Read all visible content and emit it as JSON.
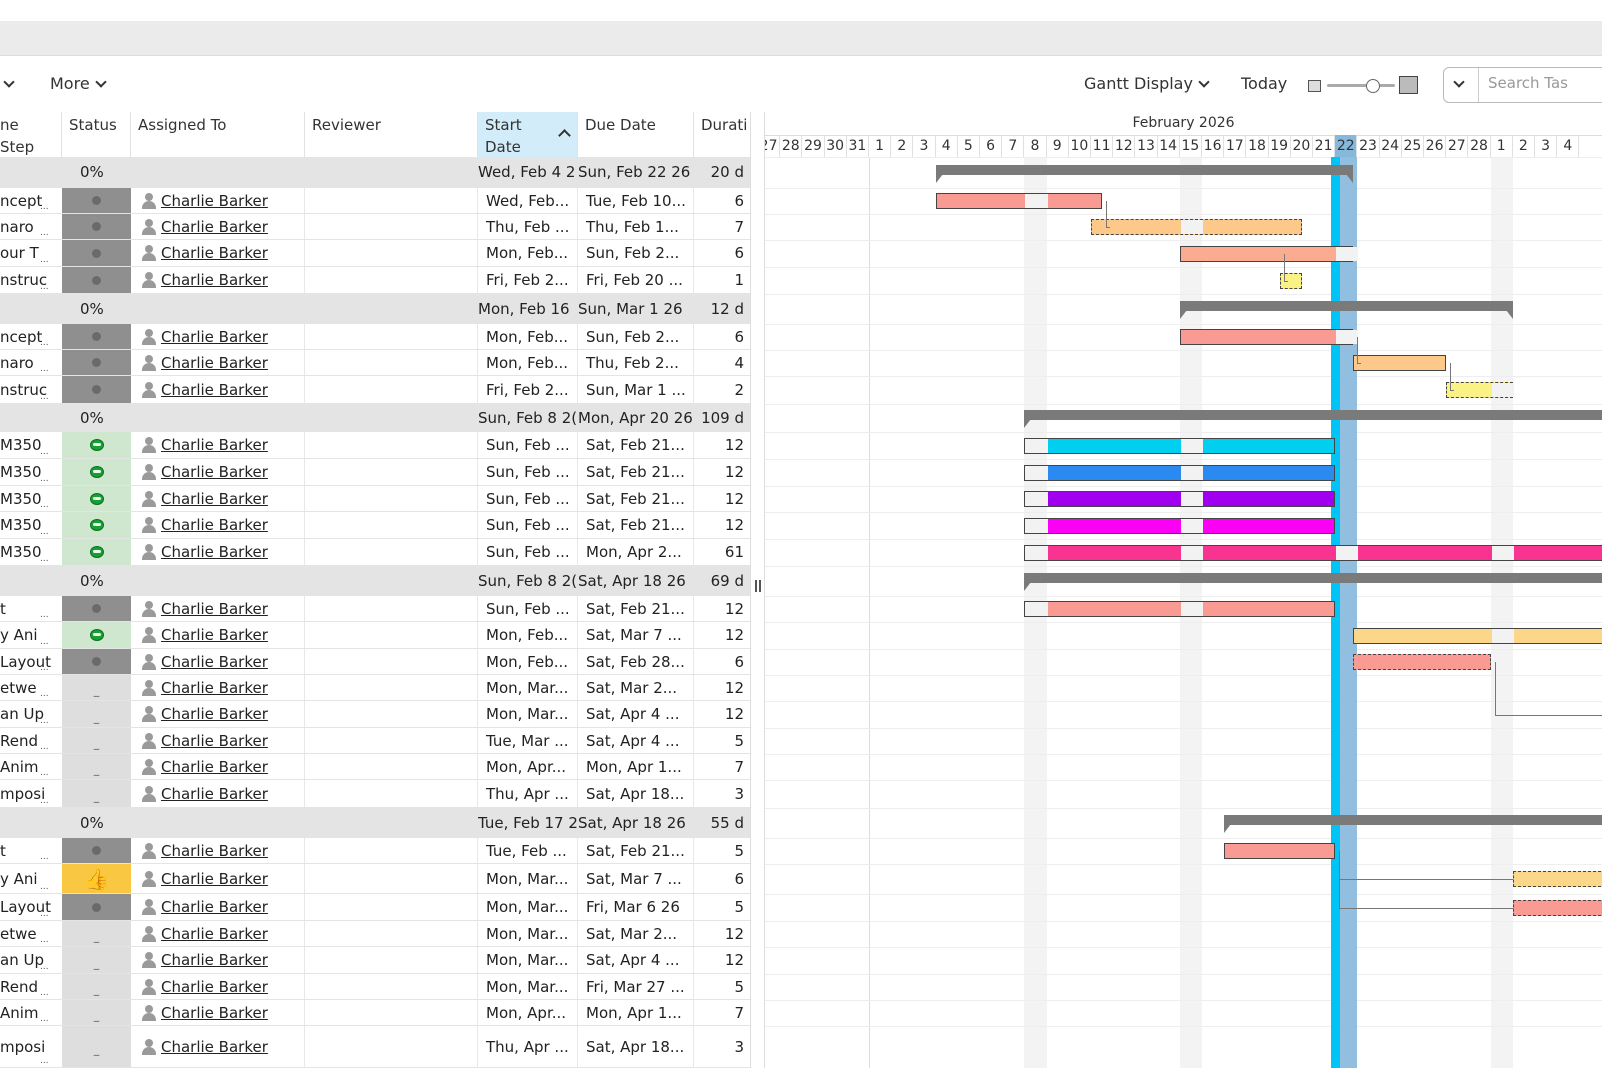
{
  "toolbar": {
    "more_label": "More",
    "gantt_display_label": "Gantt Display",
    "today_label": "Today",
    "search_placeholder": "Search Tas"
  },
  "columns": {
    "step": "ne Step",
    "status": "Status",
    "assigned": "Assigned To",
    "reviewer": "Reviewer",
    "start_line1": "Start",
    "start_line2": "Date",
    "due": "Due Date",
    "duration": "Durati"
  },
  "gantt": {
    "month": "February 2026",
    "days": [
      "27",
      "28",
      "29",
      "30",
      "31",
      "1",
      "2",
      "3",
      "4",
      "5",
      "6",
      "7",
      "8",
      "9",
      "10",
      "11",
      "12",
      "13",
      "14",
      "15",
      "16",
      "17",
      "18",
      "19",
      "20",
      "21",
      "22",
      "23",
      "24",
      "25",
      "26",
      "27",
      "28",
      "1",
      "2",
      "3",
      "4"
    ],
    "today_day": "22"
  },
  "rows": [
    {
      "type": "group",
      "pct": "0%",
      "start": "Wed, Feb 4 2",
      "due": "Sun, Feb 22 26",
      "dur": "20 d"
    },
    {
      "type": "task",
      "step": "ncept",
      "status": "dark",
      "assigned": "Charlie Barker",
      "start": "Wed, Feb...",
      "due": "Tue, Feb 10...",
      "dur": "6"
    },
    {
      "type": "task",
      "step": "naro",
      "status": "dark",
      "assigned": "Charlie Barker",
      "start": "Thu, Feb ...",
      "due": "Thu, Feb 1...",
      "dur": "7"
    },
    {
      "type": "task",
      "step": "our T",
      "status": "dark",
      "assigned": "Charlie Barker",
      "start": "Mon, Feb...",
      "due": "Sun, Feb 2...",
      "dur": "6"
    },
    {
      "type": "task",
      "step": "nstruc",
      "status": "dark",
      "assigned": "Charlie Barker",
      "start": "Fri, Feb 2...",
      "due": "Fri, Feb 20 ...",
      "dur": "1"
    },
    {
      "type": "group",
      "pct": "0%",
      "start": "Mon, Feb 16",
      "due": "Sun, Mar 1 26",
      "dur": "12 d"
    },
    {
      "type": "task",
      "step": "ncept",
      "status": "dark",
      "assigned": "Charlie Barker",
      "start": "Mon, Feb...",
      "due": "Sun, Feb 2...",
      "dur": "6"
    },
    {
      "type": "task",
      "step": "naro",
      "status": "dark",
      "assigned": "Charlie Barker",
      "start": "Mon, Feb...",
      "due": "Thu, Feb 2...",
      "dur": "4"
    },
    {
      "type": "task",
      "step": "nstruc",
      "status": "dark",
      "assigned": "Charlie Barker",
      "start": "Fri, Feb 2...",
      "due": "Sun, Mar 1 ...",
      "dur": "2"
    },
    {
      "type": "group",
      "pct": "0%",
      "start": "Sun, Feb 8 2(",
      "due": "Mon, Apr 20 26",
      "dur": "109 d"
    },
    {
      "type": "task",
      "step": "M350",
      "status": "green",
      "assigned": "Charlie Barker",
      "start": "Sun, Feb ...",
      "due": "Sat, Feb 21...",
      "dur": "12"
    },
    {
      "type": "task",
      "step": "M350",
      "status": "green",
      "assigned": "Charlie Barker",
      "start": "Sun, Feb ...",
      "due": "Sat, Feb 21...",
      "dur": "12"
    },
    {
      "type": "task",
      "step": "M350",
      "status": "green",
      "assigned": "Charlie Barker",
      "start": "Sun, Feb ...",
      "due": "Sat, Feb 21...",
      "dur": "12"
    },
    {
      "type": "task",
      "step": "M350",
      "status": "green",
      "assigned": "Charlie Barker",
      "start": "Sun, Feb ...",
      "due": "Sat, Feb 21...",
      "dur": "12"
    },
    {
      "type": "task",
      "step": "M350",
      "status": "green",
      "assigned": "Charlie Barker",
      "start": "Sun, Feb ...",
      "due": "Mon, Apr 2...",
      "dur": "61"
    },
    {
      "type": "group",
      "pct": "0%",
      "start": "Sun, Feb 8 2(",
      "due": "Sat, Apr 18 26",
      "dur": "69 d"
    },
    {
      "type": "task",
      "step": "t",
      "status": "dark",
      "assigned": "Charlie Barker",
      "start": "Sun, Feb ...",
      "due": "Sat, Feb 21...",
      "dur": "12"
    },
    {
      "type": "task",
      "step": "y Ani",
      "status": "green",
      "assigned": "Charlie Barker",
      "start": "Mon, Feb...",
      "due": "Sat, Mar 7 ...",
      "dur": "12"
    },
    {
      "type": "task",
      "step": "Layout",
      "status": "dark",
      "assigned": "Charlie Barker",
      "start": "Mon, Feb...",
      "due": "Sat, Feb 28...",
      "dur": "6"
    },
    {
      "type": "task",
      "step": "etwe",
      "status": "none",
      "assigned": "Charlie Barker",
      "start": "Mon, Mar...",
      "due": "Sat, Mar 2...",
      "dur": "12"
    },
    {
      "type": "task",
      "step": "an Up",
      "status": "none",
      "assigned": "Charlie Barker",
      "start": "Mon, Mar...",
      "due": "Sat, Apr 4 ...",
      "dur": "12"
    },
    {
      "type": "task",
      "step": "Rend",
      "status": "none",
      "assigned": "Charlie Barker",
      "start": "Tue, Mar ...",
      "due": "Sat, Apr 4 ...",
      "dur": "5"
    },
    {
      "type": "task",
      "step": "Anim",
      "status": "none",
      "assigned": "Charlie Barker",
      "start": "Mon, Apr...",
      "due": "Mon, Apr 1...",
      "dur": "7"
    },
    {
      "type": "task",
      "step": "mposi",
      "status": "none",
      "assigned": "Charlie Barker",
      "start": "Thu, Apr ...",
      "due": "Sat, Apr 18...",
      "dur": "3"
    },
    {
      "type": "group",
      "pct": "0%",
      "start": "Tue, Feb 17 2",
      "due": "Sat, Apr 18 26",
      "dur": "55 d"
    },
    {
      "type": "task",
      "step": "t",
      "status": "dark",
      "assigned": "Charlie Barker",
      "start": "Tue, Feb ...",
      "due": "Sat, Feb 21...",
      "dur": "5"
    },
    {
      "type": "task",
      "step": "y Ani",
      "status": "yellow",
      "assigned": "Charlie Barker",
      "start": "Mon, Mar...",
      "due": "Sat, Mar 7 ...",
      "dur": "6"
    },
    {
      "type": "task",
      "step": "Layout",
      "status": "dark",
      "assigned": "Charlie Barker",
      "start": "Mon, Mar...",
      "due": "Fri, Mar 6 26",
      "dur": "5"
    },
    {
      "type": "task",
      "step": "etwe",
      "status": "none",
      "assigned": "Charlie Barker",
      "start": "Mon, Mar...",
      "due": "Sat, Mar 2...",
      "dur": "12"
    },
    {
      "type": "task",
      "step": "an Up",
      "status": "none",
      "assigned": "Charlie Barker",
      "start": "Mon, Mar...",
      "due": "Sat, Apr 4 ...",
      "dur": "12"
    },
    {
      "type": "task",
      "step": "Rend",
      "status": "none",
      "assigned": "Charlie Barker",
      "start": "Mon, Mar...",
      "due": "Fri, Mar 27 ...",
      "dur": "5"
    },
    {
      "type": "task",
      "step": "Anim",
      "status": "none",
      "assigned": "Charlie Barker",
      "start": "Mon, Apr...",
      "due": "Mon, Apr 1...",
      "dur": "7"
    },
    {
      "type": "task",
      "step": "mposi",
      "status": "none",
      "assigned": "Charlie Barker",
      "start": "Thu, Apr ...",
      "due": "Sat, Apr 18...",
      "dur": "3"
    }
  ],
  "bar_colors": {
    "salmon": "#f99a93",
    "orange": "#fcc98a",
    "lightsalmon": "#fbab8f",
    "yellow": "#fbf286",
    "cyan": "#00cff0",
    "blue": "#2a8af0",
    "purple": "#a100f0",
    "magenta": "#fa00f5",
    "pink": "#f83490",
    "peach": "#fdd789",
    "today_line": "#00c4f5"
  }
}
